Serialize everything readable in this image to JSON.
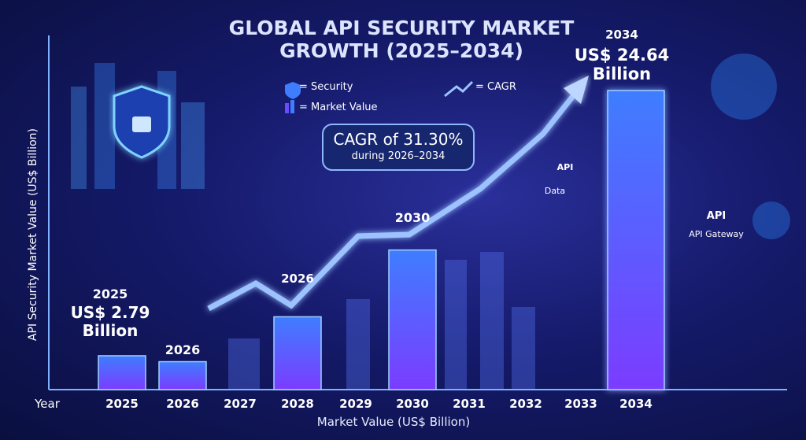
{
  "chart_data": {
    "type": "bar",
    "title": "GLOBAL API SECURITY MARKET GROWTH (2025–2034)",
    "x_label": "Year",
    "x_axis_title": "Market Value (US$ Billion)",
    "y_axis_title": "API Security Market Value (US$ Billion)",
    "categories": [
      "2025",
      "2026",
      "2027",
      "2028",
      "2029",
      "2030",
      "2031",
      "2032",
      "2033",
      "2034"
    ],
    "values": [
      2.79,
      2.3,
      null,
      6,
      null,
      11.5,
      null,
      null,
      null,
      24.64
    ],
    "value_labels": [
      "US$ 2.79 Billion",
      null,
      null,
      null,
      null,
      null,
      null,
      null,
      null,
      "US$ 24.64 Billion"
    ],
    "bar_labels": [
      "2025",
      "2026",
      null,
      null,
      null,
      "2030",
      null,
      null,
      null,
      "2034"
    ],
    "color": "#3f7dff",
    "legend": [
      "= Security",
      "= Market Value",
      "= CAGR"
    ],
    "annotations": [
      "CAGR of 31.30%",
      "during 2026–2034",
      "2026",
      "API",
      "Data",
      "API",
      "API Gateway"
    ]
  }
}
